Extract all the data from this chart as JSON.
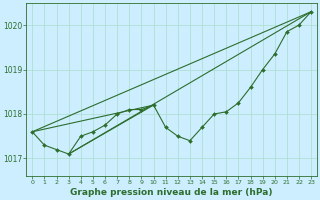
{
  "title": "Graphe pression niveau de la mer (hPa)",
  "background_color": "#cceeff",
  "grid_color": "#aaddcc",
  "line_color": "#2d6e2d",
  "ylim": [
    1016.6,
    1020.5
  ],
  "xlim": [
    -0.5,
    23.5
  ],
  "yticks": [
    1017,
    1018,
    1019,
    1020
  ],
  "xticks": [
    0,
    1,
    2,
    3,
    4,
    5,
    6,
    7,
    8,
    9,
    10,
    11,
    12,
    13,
    14,
    15,
    16,
    17,
    18,
    19,
    20,
    21,
    22,
    23
  ],
  "main_series": [
    1017.6,
    1017.3,
    1017.2,
    1017.1,
    1017.5,
    1017.6,
    1017.75,
    1018.0,
    1018.1,
    1018.1,
    1018.2,
    1017.7,
    1017.5,
    1017.4,
    1017.7,
    1018.0,
    1018.05,
    1018.25,
    1018.6,
    1019.0,
    1019.35,
    1019.85,
    1020.0,
    1020.3
  ],
  "straight_lines": [
    {
      "x0": 0,
      "y0": 1017.6,
      "x1": 23,
      "y1": 1020.3
    },
    {
      "x0": 3,
      "y0": 1017.1,
      "x1": 23,
      "y1": 1020.3
    },
    {
      "x0": 0,
      "y0": 1017.6,
      "x1": 10,
      "y1": 1018.2
    },
    {
      "x0": 3,
      "y0": 1017.1,
      "x1": 10,
      "y1": 1018.2
    }
  ]
}
